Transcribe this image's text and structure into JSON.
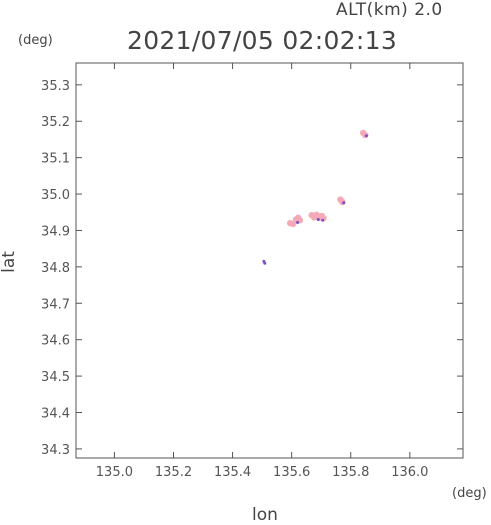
{
  "chart_data": {
    "type": "scatter",
    "title": "2021/07/05 02:02:13",
    "subtitle": "ALT(km) 2.0",
    "xlabel": "lon",
    "ylabel": "lat",
    "xunit": "(deg)",
    "yunit": "(deg)",
    "xlim": [
      134.87,
      136.18
    ],
    "ylim": [
      34.275,
      35.36
    ],
    "xticks": [
      "135.0",
      "135.2",
      "135.4",
      "135.6",
      "135.8",
      "136.0"
    ],
    "yticks": [
      "34.3",
      "34.4",
      "34.5",
      "34.6",
      "34.7",
      "34.8",
      "34.9",
      "35.0",
      "35.1",
      "35.2",
      "35.3"
    ],
    "grid": false,
    "colors": {
      "primary": "#f4a9b8",
      "secondary": "#7a4fc4"
    },
    "points": [
      {
        "x": 135.506,
        "y": 34.815,
        "c": "secondary"
      },
      {
        "x": 135.509,
        "y": 34.81,
        "c": "secondary"
      },
      {
        "x": 135.595,
        "y": 34.92,
        "c": "primary"
      },
      {
        "x": 135.605,
        "y": 34.918,
        "c": "primary"
      },
      {
        "x": 135.615,
        "y": 34.93,
        "c": "primary"
      },
      {
        "x": 135.622,
        "y": 34.935,
        "c": "primary"
      },
      {
        "x": 135.628,
        "y": 34.928,
        "c": "primary"
      },
      {
        "x": 135.62,
        "y": 34.922,
        "c": "secondary"
      },
      {
        "x": 135.668,
        "y": 34.942,
        "c": "primary"
      },
      {
        "x": 135.676,
        "y": 34.936,
        "c": "primary"
      },
      {
        "x": 135.684,
        "y": 34.943,
        "c": "primary"
      },
      {
        "x": 135.693,
        "y": 34.935,
        "c": "primary"
      },
      {
        "x": 135.702,
        "y": 34.94,
        "c": "primary"
      },
      {
        "x": 135.708,
        "y": 34.934,
        "c": "primary"
      },
      {
        "x": 135.69,
        "y": 34.93,
        "c": "secondary"
      },
      {
        "x": 135.705,
        "y": 34.928,
        "c": "secondary"
      },
      {
        "x": 135.765,
        "y": 34.985,
        "c": "primary"
      },
      {
        "x": 135.772,
        "y": 34.978,
        "c": "primary"
      },
      {
        "x": 135.776,
        "y": 34.976,
        "c": "secondary"
      },
      {
        "x": 135.842,
        "y": 35.168,
        "c": "primary"
      },
      {
        "x": 135.849,
        "y": 35.162,
        "c": "primary"
      },
      {
        "x": 135.853,
        "y": 35.16,
        "c": "secondary"
      }
    ]
  }
}
